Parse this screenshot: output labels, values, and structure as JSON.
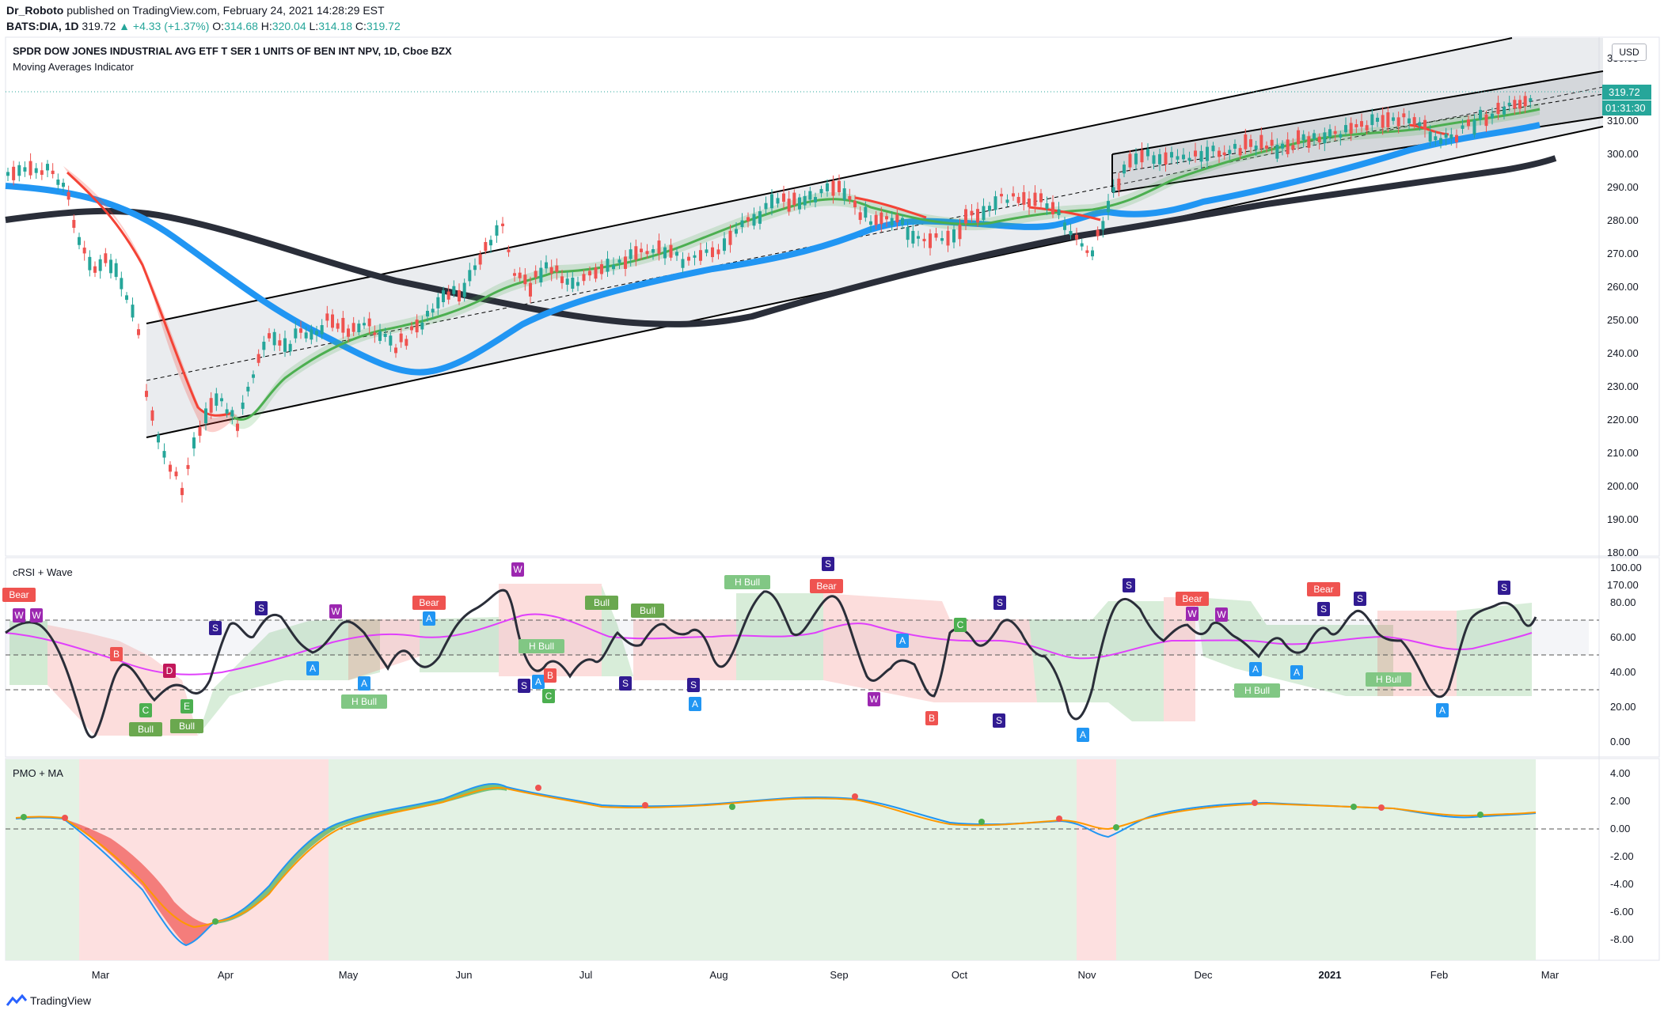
{
  "header": {
    "author": "Dr_Roboto",
    "published_text": "published on TradingView.com, February 24, 2021 14:28:29 EST",
    "symbol": "BATS:DIA, 1D",
    "last": "319.72",
    "change": "▲ +4.33 (+1.37%)",
    "o_label": "O:",
    "o": "314.68",
    "h_label": "H:",
    "h": "320.04",
    "l_label": "L:",
    "l": "314.18",
    "c_label": "C:",
    "c": "319.72"
  },
  "main_panel": {
    "title": "SPDR DOW JONES INDUSTRIAL AVG ETF T SER 1 UNITS OF BEN INT NPV, 1D, Cboe BZX",
    "indicator": "Moving Averages Indicator",
    "currency": "USD",
    "price_ticks": [
      "330.00",
      "310.00",
      "300.00",
      "290.00",
      "280.00",
      "270.00",
      "260.00",
      "250.00",
      "240.00",
      "230.00",
      "220.00",
      "210.00",
      "200.00",
      "190.00",
      "180.00",
      "170.00"
    ],
    "last_price_tag": "319.72",
    "countdown_tag": "01:31:30"
  },
  "rsi_panel": {
    "title": "cRSI + Wave",
    "ticks": [
      "100.00",
      "80.00",
      "60.00",
      "40.00",
      "20.00",
      "0.00"
    ],
    "markers": [
      "Bear",
      "W",
      "W",
      "B",
      "D",
      "C",
      "Bull",
      "E",
      "Bull",
      "S",
      "S",
      "A",
      "W",
      "A",
      "H Bull",
      "A",
      "Bear",
      "W",
      "S",
      "A",
      "H Bull",
      "B",
      "C",
      "Bull",
      "S",
      "Bull",
      "S",
      "A",
      "H Bull",
      "S",
      "Bear",
      "W",
      "A",
      "B",
      "C",
      "S",
      "S",
      "A",
      "S",
      "Bear",
      "W",
      "W",
      "A",
      "H Bull",
      "A",
      "Bear",
      "S",
      "S",
      "H Bull",
      "A",
      "S"
    ]
  },
  "pmo_panel": {
    "title": "PMO + MA",
    "ticks": [
      "4.00",
      "2.00",
      "0.00",
      "-2.00",
      "-4.00",
      "-6.00",
      "-8.00"
    ]
  },
  "time_axis": [
    "Mar",
    "Apr",
    "May",
    "Jun",
    "Jul",
    "Aug",
    "Sep",
    "Oct",
    "Nov",
    "Dec",
    "2021",
    "Feb",
    "Mar"
  ],
  "footer": {
    "brand": "TradingView"
  },
  "colors": {
    "up": "#26a69a",
    "down": "#ef5350",
    "ma_blue": "#2196f3",
    "ma_black": "#2a2e39",
    "ma_green": "#4caf50",
    "ma_red": "#f44336",
    "bull_bg": "#e3f2e4",
    "bear_bg": "#fde0e0"
  }
}
